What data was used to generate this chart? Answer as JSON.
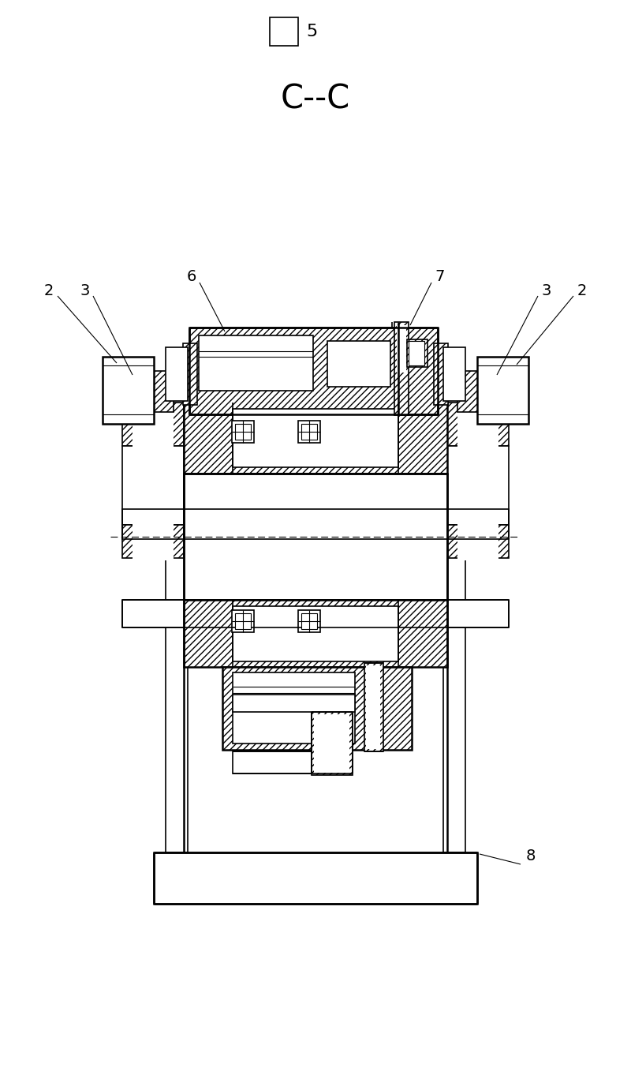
{
  "bg_color": "#ffffff",
  "line_color": "#000000",
  "hatch": "////",
  "fig_label": "5",
  "section_label": "C--C",
  "part_labels": [
    "2",
    "3",
    "6",
    "7",
    "3",
    "2",
    "8"
  ],
  "lw_thin": 0.8,
  "lw_med": 1.2,
  "lw_thick": 1.8
}
